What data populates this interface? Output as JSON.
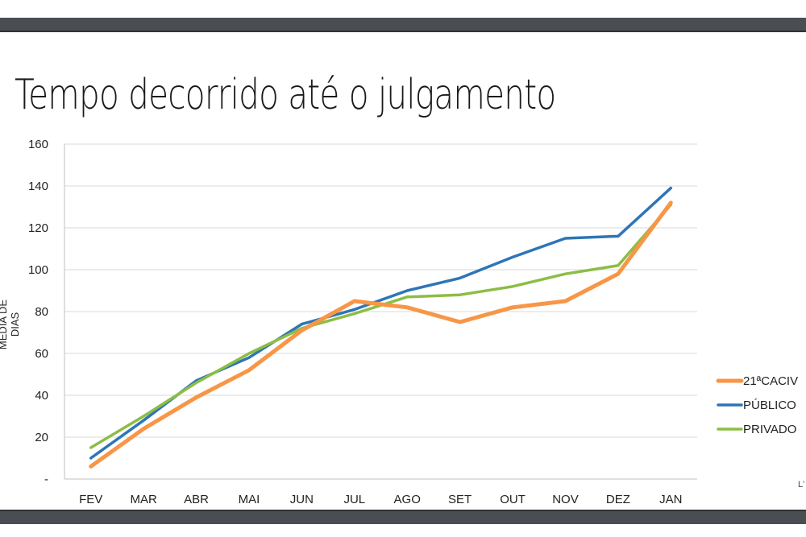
{
  "slide": {
    "title": "Tempo decorrido até o julgamento",
    "corner_mark": "L'"
  },
  "chart_data": {
    "type": "line",
    "title": "Tempo decorrido até o julgamento",
    "xlabel": "",
    "ylabel": "MEDIA DE DIAS",
    "ylim": [
      0,
      160
    ],
    "yticks": [
      0,
      20,
      40,
      60,
      80,
      100,
      120,
      140,
      160
    ],
    "ytick_labels": [
      "-",
      "20",
      "40",
      "60",
      "80",
      "100",
      "120",
      "140",
      "160"
    ],
    "categories": [
      "FEV",
      "MAR",
      "ABR",
      "MAI",
      "JUN",
      "JUL",
      "AGO",
      "SET",
      "OUT",
      "NOV",
      "DEZ",
      "JAN"
    ],
    "grid": true,
    "legend_position": "right",
    "series": [
      {
        "name": "21ªCACIV",
        "color": "#f79646",
        "values": [
          6,
          24,
          39,
          52,
          71,
          85,
          82,
          75,
          82,
          85,
          98,
          132
        ]
      },
      {
        "name": "PÚBLICO",
        "color": "#2e75b6",
        "values": [
          10,
          28,
          47,
          58,
          74,
          81,
          90,
          96,
          106,
          115,
          116,
          139
        ]
      },
      {
        "name": "PRIVADO",
        "color": "#8cbd45",
        "values": [
          15,
          30,
          46,
          60,
          72,
          79,
          87,
          88,
          92,
          98,
          102,
          131
        ]
      }
    ]
  }
}
